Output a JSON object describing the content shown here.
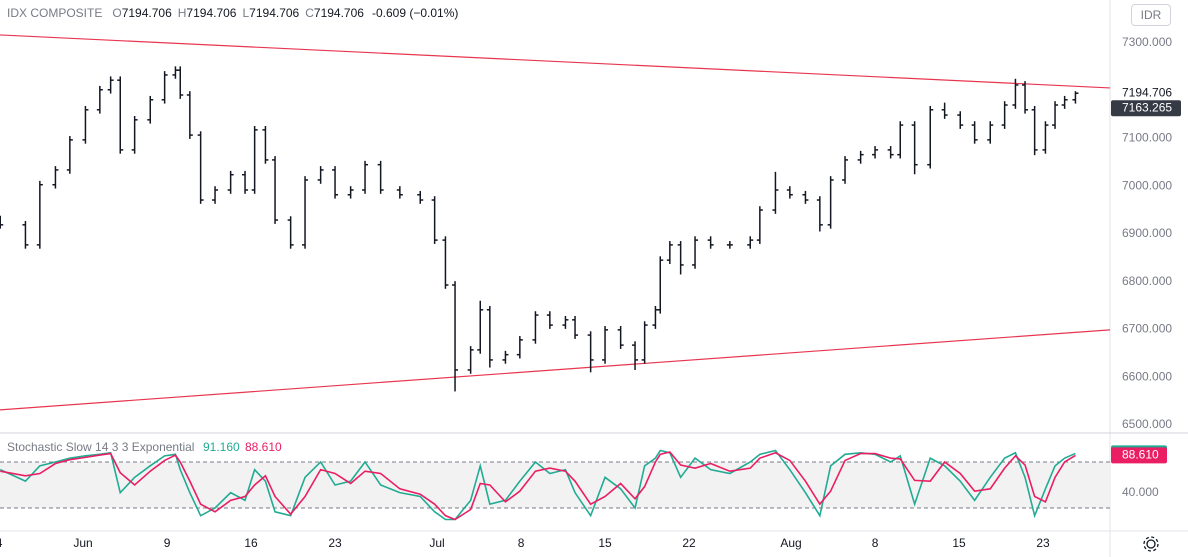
{
  "header": {
    "symbol": "IDX COMPOSITE",
    "ohlc": [
      {
        "label": "O",
        "value": "7194.706"
      },
      {
        "label": "H",
        "value": "7194.706"
      },
      {
        "label": "L",
        "value": "7194.706"
      },
      {
        "label": "C",
        "value": "7194.706"
      }
    ],
    "change": "-0.609 (−0.01%)",
    "currency": "IDR"
  },
  "chart_data": [
    {
      "type": "ohlc",
      "color": "#131722",
      "x": [
        -6.9,
        -4.8,
        -3.6,
        -2.3,
        -1.1,
        0.2,
        1.4,
        2.3,
        3.1,
        4.3,
        5.6,
        6.8,
        7.7,
        8.1,
        8.9,
        9.8,
        11,
        12.3,
        13.5,
        14.3,
        15.2,
        16,
        17.3,
        18.5,
        19.8,
        21,
        22.3,
        23.5,
        24.8,
        26.4,
        28.1,
        29.3,
        30.2,
        31,
        32.3,
        33.1,
        33.9,
        35.2,
        36.4,
        37.7,
        38.9,
        40.2,
        41,
        42.3,
        43.5,
        44.8,
        46,
        46.8,
        47.7,
        48.1,
        48.9,
        49.8,
        51,
        52.3,
        53.9,
        55.6,
        56.4,
        57.7,
        58.9,
        60.2,
        61.4,
        62.3,
        63.5,
        64.8,
        66,
        67.3,
        68.1,
        69.3,
        70.6,
        71.8,
        73.1,
        74.3,
        75.6,
        76.8,
        77.7,
        78.5,
        79.3,
        80.2,
        81,
        81.8,
        82.7
      ],
      "open": [
        6930,
        6919,
        6877,
        7003,
        7034,
        7097,
        7160,
        7202,
        7222,
        7076,
        7139,
        7181,
        7233,
        7243,
        7191,
        7107,
        6971,
        6992,
        7024,
        6992,
        7118,
        7055,
        6929,
        6877,
        7013,
        7034,
        6982,
        6992,
        7045,
        6992,
        6982,
        6971,
        6887,
        6793,
        6615,
        6657,
        6741,
        6636,
        6647,
        6678,
        6730,
        6709,
        6720,
        6688,
        6636,
        6699,
        6667,
        6636,
        6709,
        6741,
        6845,
        6877,
        6835,
        6887,
        6877,
        6877,
        6887,
        6950,
        6992,
        6982,
        6971,
        6919,
        7013,
        7055,
        7066,
        7076,
        7066,
        7128,
        7045,
        7160,
        7149,
        7128,
        7097,
        7128,
        7170,
        7212,
        7160,
        7076,
        7128,
        7170,
        7181
      ],
      "high": [
        6938,
        6927,
        7011,
        7042,
        7105,
        7168,
        7210,
        7230,
        7230,
        7147,
        7189,
        7241,
        7251,
        7251,
        7199,
        7115,
        7000,
        7032,
        7032,
        7126,
        7126,
        7063,
        6937,
        7021,
        7042,
        7042,
        7000,
        7053,
        7053,
        7000,
        6990,
        6979,
        6895,
        6801,
        6665,
        6760,
        6749,
        6655,
        6686,
        6738,
        6738,
        6728,
        6728,
        6696,
        6707,
        6707,
        6675,
        6717,
        6749,
        6853,
        6885,
        6885,
        6895,
        6895,
        6885,
        6895,
        6958,
        7030,
        7000,
        6990,
        6979,
        7021,
        7063,
        7074,
        7084,
        7084,
        7136,
        7136,
        7168,
        7175,
        7157,
        7136,
        7136,
        7178,
        7225,
        7220,
        7168,
        7136,
        7178,
        7189,
        7199
      ],
      "low": [
        6911,
        6869,
        6869,
        6995,
        7026,
        7089,
        7152,
        7194,
        7068,
        7068,
        7131,
        7173,
        7225,
        7183,
        7099,
        6963,
        6963,
        6984,
        6984,
        6984,
        7047,
        6921,
        6869,
        6869,
        7005,
        6974,
        6974,
        6984,
        6984,
        6974,
        6963,
        6879,
        6785,
        6570,
        6607,
        6649,
        6620,
        6628,
        6639,
        6670,
        6701,
        6701,
        6680,
        6610,
        6628,
        6659,
        6615,
        6628,
        6701,
        6733,
        6837,
        6815,
        6827,
        6869,
        6869,
        6869,
        6879,
        6942,
        6974,
        6963,
        6905,
        6911,
        7005,
        7047,
        7058,
        7058,
        7058,
        7025,
        7037,
        7141,
        7120,
        7089,
        7089,
        7120,
        7162,
        7152,
        7065,
        7068,
        7120,
        7162,
        7173
      ],
      "close": [
        6919,
        6877,
        7003,
        7034,
        7097,
        7160,
        7202,
        7222,
        7076,
        7139,
        7181,
        7233,
        7243,
        7191,
        7107,
        6971,
        6992,
        7024,
        6992,
        7118,
        7055,
        6929,
        6877,
        7013,
        7034,
        6982,
        6992,
        7045,
        6992,
        6982,
        6971,
        6887,
        6793,
        6615,
        6657,
        6741,
        6636,
        6647,
        6678,
        6730,
        6709,
        6720,
        6688,
        6636,
        6699,
        6667,
        6636,
        6709,
        6741,
        6845,
        6877,
        6835,
        6887,
        6877,
        6877,
        6887,
        6950,
        6992,
        6982,
        6971,
        6919,
        7013,
        7055,
        7066,
        7076,
        7066,
        7128,
        7045,
        7160,
        7149,
        7128,
        7097,
        7128,
        7170,
        7212,
        7160,
        7076,
        7128,
        7170,
        7181,
        7194.706
      ],
      "xlim": [
        -6.92,
        85.58
      ],
      "xticks": [
        {
          "value": -7,
          "label": "4"
        },
        {
          "value": 0,
          "label": "Jun"
        },
        {
          "value": 7,
          "label": "9"
        },
        {
          "value": 14,
          "label": "16"
        },
        {
          "value": 21,
          "label": "23"
        },
        {
          "value": 29.5,
          "label": "Jul"
        },
        {
          "value": 36.5,
          "label": "8"
        },
        {
          "value": 43.5,
          "label": "15"
        },
        {
          "value": 50.5,
          "label": "22"
        },
        {
          "value": 59,
          "label": "Aug"
        },
        {
          "value": 66,
          "label": "8"
        },
        {
          "value": 73,
          "label": "15"
        },
        {
          "value": 80,
          "label": "23"
        }
      ],
      "ylim": [
        6485,
        7390
      ],
      "yticks": [
        {
          "value": 6500,
          "label": "6500.000"
        },
        {
          "value": 6600,
          "label": "6600.000"
        },
        {
          "value": 6700,
          "label": "6700.000"
        },
        {
          "value": 6800,
          "label": "6800.000"
        },
        {
          "value": 6900,
          "label": "6900.000"
        },
        {
          "value": 7000,
          "label": "7000.000"
        },
        {
          "value": 7100,
          "label": "7100.000"
        },
        {
          "value": 7200,
          "label": "7200.000"
        },
        {
          "value": 7300,
          "label": "7300.000"
        }
      ],
      "trend_lines": [
        {
          "color": "#e8364f",
          "x": [
            -6.92,
            85.58
          ],
          "y": [
            7316.8,
            7205.8
          ]
        },
        {
          "color": "#e8364f",
          "x": [
            -6.92,
            85.58
          ],
          "y": [
            6531.4,
            6699
          ]
        }
      ],
      "price_labels": [
        {
          "value": 7194.706,
          "label": "7194.706",
          "background": "#ffffff",
          "text_color": "#131722"
        },
        {
          "value": 7163.265,
          "label": "7163.265",
          "background": "#363a45",
          "text_color": "#ffffff"
        }
      ]
    },
    {
      "type": "line",
      "title": "Stochastic Slow 14 3 3 Exponential",
      "ylim": [
        -8.7,
        116.5
      ],
      "yticks": [
        {
          "value": 40,
          "label": "40.000"
        }
      ],
      "bands": [
        20,
        80
      ],
      "series": [
        {
          "color": "#22ab94",
          "value_label": "91.160",
          "values": [
            70,
            55,
            75,
            80,
            85,
            88,
            90,
            92,
            40,
            60,
            75,
            88,
            90,
            70,
            40,
            10,
            20,
            40,
            30,
            70,
            55,
            15,
            10,
            60,
            80,
            50,
            55,
            80,
            50,
            40,
            35,
            15,
            5,
            5,
            30,
            75,
            25,
            30,
            55,
            80,
            65,
            70,
            40,
            10,
            60,
            45,
            20,
            75,
            85,
            95,
            92,
            60,
            85,
            70,
            65,
            80,
            90,
            95,
            70,
            40,
            10,
            75,
            90,
            92,
            90,
            80,
            88,
            25,
            85,
            75,
            55,
            30,
            60,
            85,
            92,
            60,
            10,
            45,
            75,
            85,
            91.16
          ]
        },
        {
          "color": "#e91e63",
          "value_label": "88.610",
          "values": [
            68,
            62,
            65,
            78,
            83,
            86,
            89,
            91,
            66,
            50,
            68,
            82,
            89,
            80,
            55,
            25,
            15,
            30,
            35,
            50,
            62,
            35,
            12,
            35,
            70,
            65,
            52,
            68,
            65,
            45,
            38,
            25,
            10,
            5,
            18,
            52,
            50,
            28,
            42,
            68,
            72,
            68,
            55,
            25,
            35,
            52,
            32,
            48,
            80,
            90,
            93,
            76,
            72,
            78,
            68,
            72,
            85,
            92,
            82,
            55,
            25,
            42,
            82,
            91,
            91,
            85,
            84,
            56,
            55,
            80,
            65,
            42,
            45,
            72,
            88,
            76,
            35,
            28,
            60,
            80,
            88.61
          ]
        }
      ]
    }
  ]
}
